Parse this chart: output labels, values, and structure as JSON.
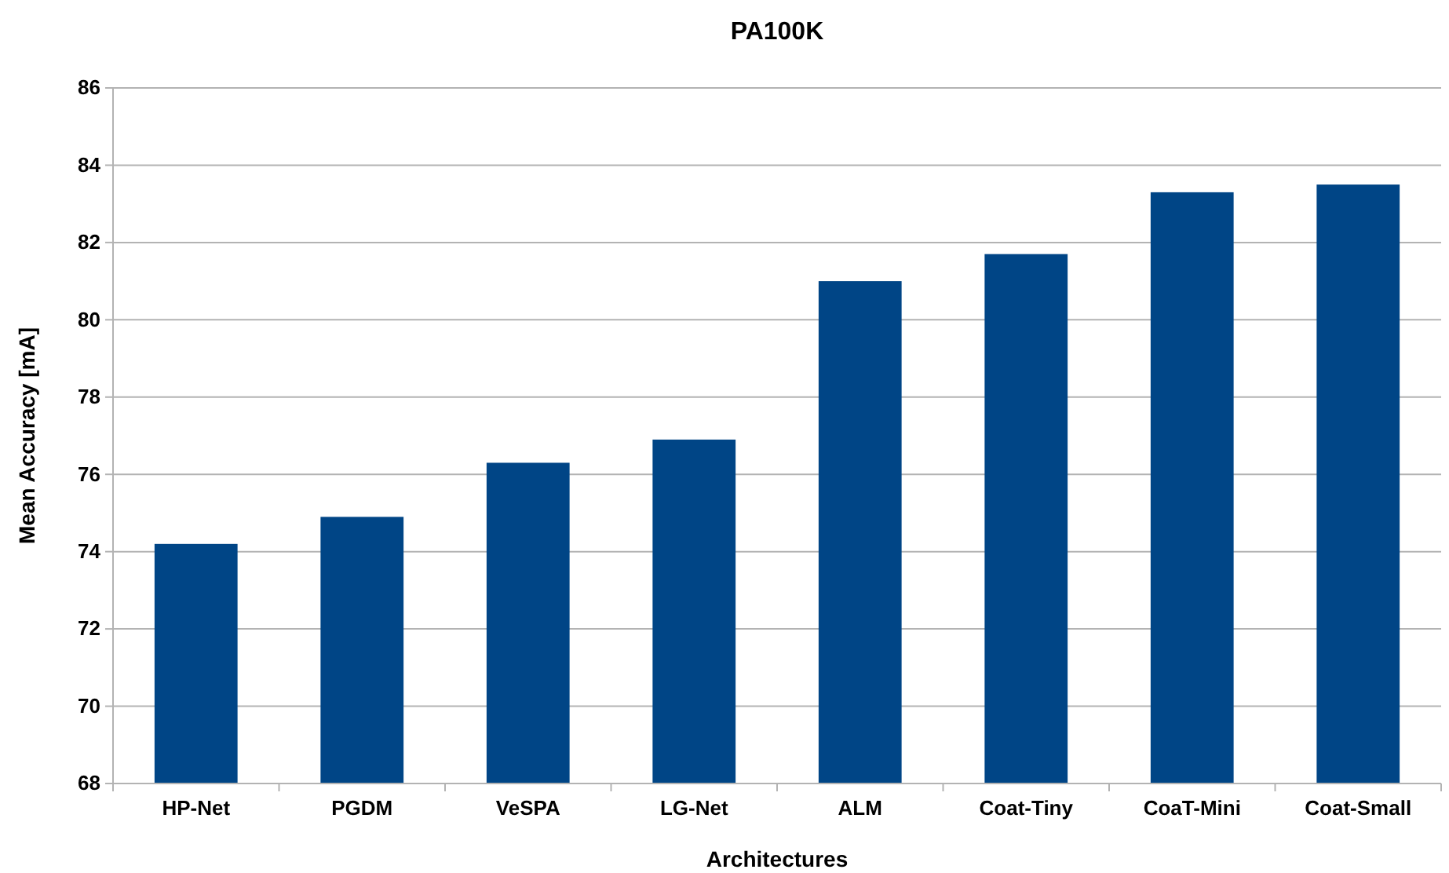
{
  "chart_data": {
    "type": "bar",
    "title": "PA100K",
    "xlabel": "Architectures",
    "ylabel": "Mean Accuracy [mA]",
    "categories": [
      "HP-Net",
      "PGDM",
      "VeSPA",
      "LG-Net",
      "ALM",
      "Coat-Tiny",
      "CoaT-Mini",
      "Coat-Small"
    ],
    "values": [
      74.2,
      74.9,
      76.3,
      76.9,
      81.0,
      81.7,
      83.3,
      83.5
    ],
    "color": "#004586",
    "ylim": [
      68,
      86
    ],
    "yticks": [
      68,
      70,
      72,
      74,
      76,
      78,
      80,
      82,
      84,
      86
    ],
    "grid": "y"
  }
}
